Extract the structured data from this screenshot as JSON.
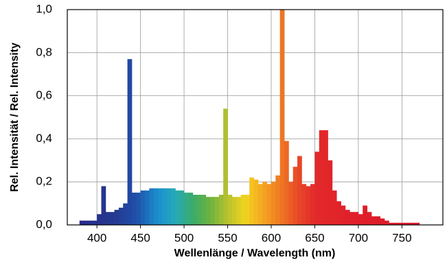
{
  "chart_data": {
    "type": "histogram",
    "x_label": "Wellenlänge / Wavelength (nm)",
    "y_label": "Rel. Intensität / Rel. Intensity",
    "bins": [
      380,
      385,
      390,
      395,
      400,
      405,
      410,
      415,
      420,
      425,
      430,
      435,
      440,
      445,
      450,
      455,
      460,
      465,
      470,
      475,
      480,
      485,
      490,
      495,
      500,
      505,
      510,
      515,
      520,
      525,
      530,
      535,
      540,
      545,
      550,
      555,
      560,
      565,
      570,
      575,
      580,
      585,
      590,
      595,
      600,
      605,
      610,
      615,
      620,
      625,
      630,
      635,
      640,
      645,
      650,
      655,
      660,
      665,
      670,
      675,
      680,
      685,
      690,
      695,
      700,
      705,
      710,
      715,
      720,
      725,
      730,
      735,
      740,
      745,
      750,
      755,
      760,
      765,
      770
    ],
    "values": [
      0.02,
      0.02,
      0.02,
      0.02,
      0.05,
      0.18,
      0.06,
      0.06,
      0.07,
      0.08,
      0.1,
      0.77,
      0.15,
      0.15,
      0.16,
      0.16,
      0.17,
      0.17,
      0.17,
      0.17,
      0.17,
      0.17,
      0.16,
      0.16,
      0.15,
      0.15,
      0.14,
      0.14,
      0.14,
      0.13,
      0.13,
      0.13,
      0.14,
      0.54,
      0.14,
      0.13,
      0.13,
      0.14,
      0.14,
      0.22,
      0.21,
      0.19,
      0.2,
      0.19,
      0.2,
      0.23,
      1.0,
      0.39,
      0.2,
      0.27,
      0.32,
      0.19,
      0.18,
      0.19,
      0.34,
      0.44,
      0.44,
      0.3,
      0.16,
      0.11,
      0.09,
      0.07,
      0.06,
      0.06,
      0.05,
      0.09,
      0.06,
      0.04,
      0.04,
      0.03,
      0.02,
      0.01,
      0.01,
      0.01,
      0.01,
      0.01,
      0.01,
      0.01
    ],
    "xlim": [
      366,
      797
    ],
    "ylim": [
      0,
      1.0
    ],
    "xticks": [
      400,
      450,
      500,
      550,
      600,
      650,
      700,
      750
    ],
    "yticks": [
      {
        "value": 0,
        "label": "0,0"
      },
      {
        "value": 0.2,
        "label": "0,2"
      },
      {
        "value": 0.4,
        "label": "0,4"
      },
      {
        "value": 0.6,
        "label": "0,6"
      },
      {
        "value": 0.8,
        "label": "0,8"
      },
      {
        "value": 1.0,
        "label": "1,0"
      }
    ],
    "grid": true
  }
}
